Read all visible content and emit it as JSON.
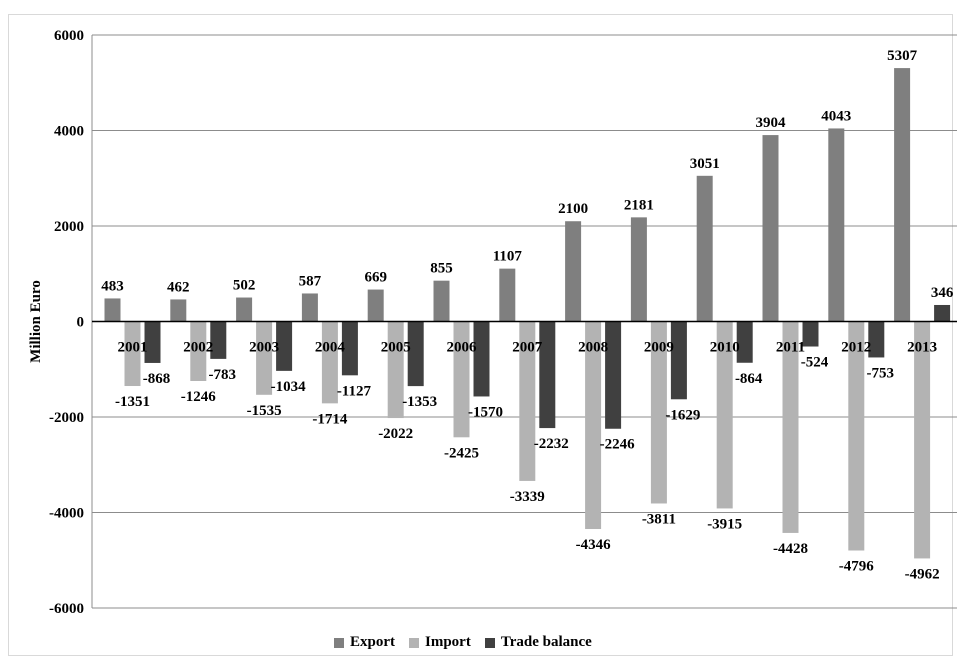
{
  "chart_data": {
    "type": "bar",
    "title": "",
    "xlabel": "",
    "ylabel": "Million Euro",
    "ylim": [
      -6000,
      6000
    ],
    "yticks": [
      6000,
      4000,
      2000,
      0,
      -2000,
      -4000,
      -6000
    ],
    "grid": true,
    "legend_position": "bottom",
    "categories": [
      "2001",
      "2002",
      "2003",
      "2004",
      "2005",
      "2006",
      "2007",
      "2008",
      "2009",
      "2010",
      "2011",
      "2012",
      "2013"
    ],
    "series": [
      {
        "name": "Export",
        "color": "#7f7f7f",
        "values": [
          483,
          462,
          502,
          587,
          669,
          855,
          1107,
          2100,
          2181,
          3051,
          3904,
          4043,
          5307
        ]
      },
      {
        "name": "Import",
        "color": "#b3b3b3",
        "values": [
          -1351,
          -1246,
          -1535,
          -1714,
          -2022,
          -2425,
          -3339,
          -4346,
          -3811,
          -3915,
          -4428,
          -4796,
          -4962
        ]
      },
      {
        "name": "Trade balance",
        "color": "#404040",
        "values": [
          -868,
          -783,
          -1034,
          -1127,
          -1353,
          -1570,
          -2232,
          -2246,
          -1629,
          -864,
          -524,
          -753,
          346
        ]
      }
    ]
  }
}
